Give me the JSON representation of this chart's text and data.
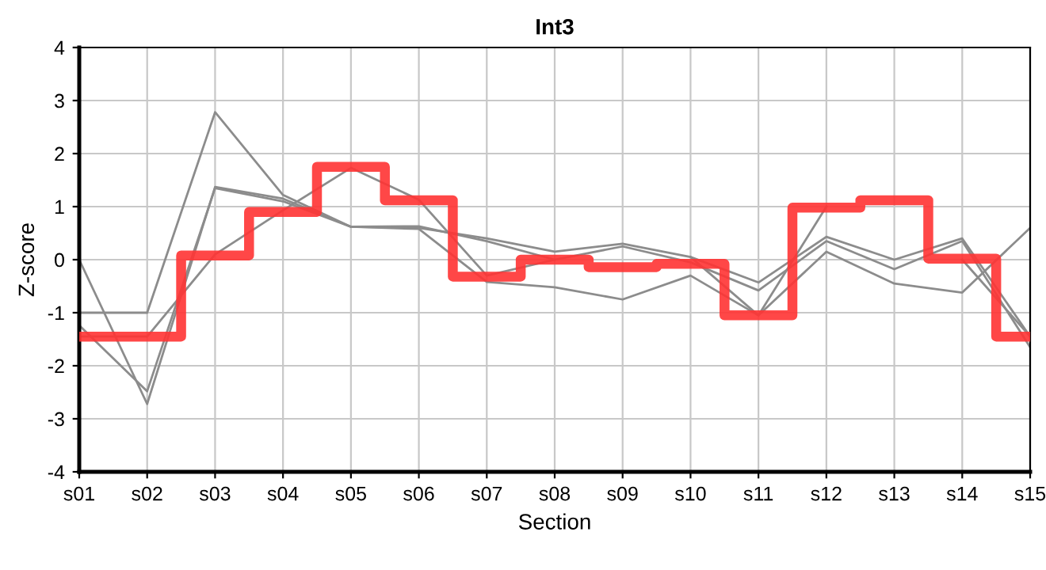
{
  "chart_data": {
    "type": "line",
    "title": "Int3",
    "xlabel": "Section",
    "ylabel": "Z-score",
    "categories": [
      "s01",
      "s02",
      "s03",
      "s04",
      "s05",
      "s06",
      "s07",
      "s08",
      "s09",
      "s10",
      "s11",
      "s12",
      "s13",
      "s14",
      "s15"
    ],
    "series": [
      {
        "color": "#8c8c8c",
        "values": [
          -1.0,
          -1.0,
          2.78,
          1.22,
          0.62,
          0.6,
          0.4,
          0.15,
          0.3,
          0.05,
          -0.43,
          0.43,
          0.0,
          0.4,
          -1.45
        ]
      },
      {
        "color": "#8c8c8c",
        "values": [
          0.0,
          -2.72,
          1.37,
          1.15,
          0.62,
          0.63,
          0.35,
          0.0,
          0.25,
          -0.05,
          -0.58,
          0.35,
          -0.18,
          0.35,
          -1.65
        ]
      },
      {
        "color": "#8c8c8c",
        "values": [
          -1.24,
          -2.48,
          1.35,
          1.1,
          0.62,
          0.58,
          -0.42,
          -0.52,
          -0.75,
          -0.3,
          -1.05,
          0.15,
          -0.45,
          -0.62,
          0.6
        ]
      },
      {
        "color": "#8c8c8c",
        "values": [
          -1.45,
          -1.45,
          0.1,
          0.93,
          1.73,
          1.13,
          -0.3,
          0.0,
          null,
          0.05,
          -1.05,
          1.0,
          null,
          0.0,
          -1.45
        ]
      },
      {
        "type": "step",
        "color": "#ff3333",
        "values": [
          -1.45,
          -1.45,
          0.08,
          0.9,
          1.75,
          1.12,
          -0.32,
          0.0,
          -0.14,
          -0.08,
          -1.05,
          0.98,
          1.12,
          0.02,
          -1.45
        ]
      }
    ],
    "ylim": [
      -4,
      4
    ],
    "yticks": [
      -4,
      -3,
      -2,
      -1,
      0,
      1,
      2,
      3,
      4
    ],
    "grid": true,
    "legend": false
  }
}
